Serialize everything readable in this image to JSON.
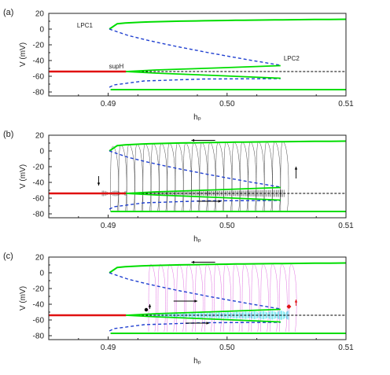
{
  "chart_data": [
    {
      "panel": "(a)",
      "type": "line",
      "xlabel": "hₚ",
      "ylabel": "V (mV)",
      "xlim": [
        0.485,
        0.51
      ],
      "ylim": [
        -85,
        20
      ],
      "xticks": [
        "0.49",
        "0.50",
        "0.51"
      ],
      "yticks": [
        "20",
        "0",
        "-20",
        "-40",
        "-60",
        "-80"
      ],
      "annotations": [
        "LPC1",
        "LPC2",
        "supH"
      ]
    },
    {
      "panel": "(b)",
      "type": "line",
      "xlabel": "hₚ",
      "ylabel": "V (mV)",
      "xlim": [
        0.485,
        0.51
      ],
      "ylim": [
        -85,
        20
      ],
      "xticks": [
        "0.49",
        "0.50",
        "0.51"
      ],
      "yticks": [
        "20",
        "0",
        "-20",
        "-40",
        "-60",
        "-80"
      ],
      "annotations": []
    },
    {
      "panel": "(c)",
      "type": "line",
      "xlabel": "hₚ",
      "ylabel": "V (mV)",
      "xlim": [
        0.485,
        0.51
      ],
      "ylim": [
        -85,
        20
      ],
      "xticks": [
        "0.49",
        "0.50",
        "0.51"
      ],
      "yticks": [
        "20",
        "0",
        "-20",
        "-40",
        "-60",
        "-80"
      ],
      "annotations": []
    }
  ],
  "colors": {
    "stable_periodic": "#00dd00",
    "unstable_periodic": "#1f3fd0",
    "stable_equilibrium": "#e01010",
    "unstable_equilibrium": "#000000",
    "sweep_trace_b": "#333333",
    "sweep_trace_c_upper": "#e070e0",
    "sweep_trace_c_lower": "#20d8e8",
    "arrow": "#000000",
    "marker_red": "#e01010"
  }
}
